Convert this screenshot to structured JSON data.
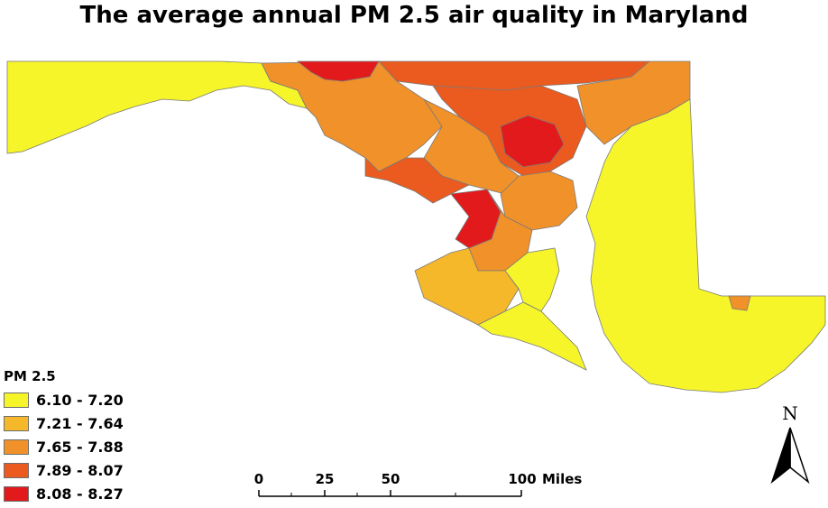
{
  "title": "The average annual PM 2.5 air quality in Maryland",
  "legend": {
    "title": "PM 2.5",
    "classes": [
      {
        "label": "6.10 - 7.20",
        "color": "#f5f52a"
      },
      {
        "label": "7.21 - 7.64",
        "color": "#f5b82a"
      },
      {
        "label": "7.65 - 7.88",
        "color": "#f0912a"
      },
      {
        "label": "7.89 - 8.07",
        "color": "#eb5a1e"
      },
      {
        "label": "8.08 - 8.27",
        "color": "#e31a1c"
      }
    ]
  },
  "scale_bar": {
    "ticks": [
      "0",
      "25",
      "50",
      "100"
    ],
    "unit": "Miles"
  },
  "north_arrow": {
    "label": "N"
  },
  "colors": {
    "boundary": "#7a7a7a",
    "background": "#ffffff"
  }
}
